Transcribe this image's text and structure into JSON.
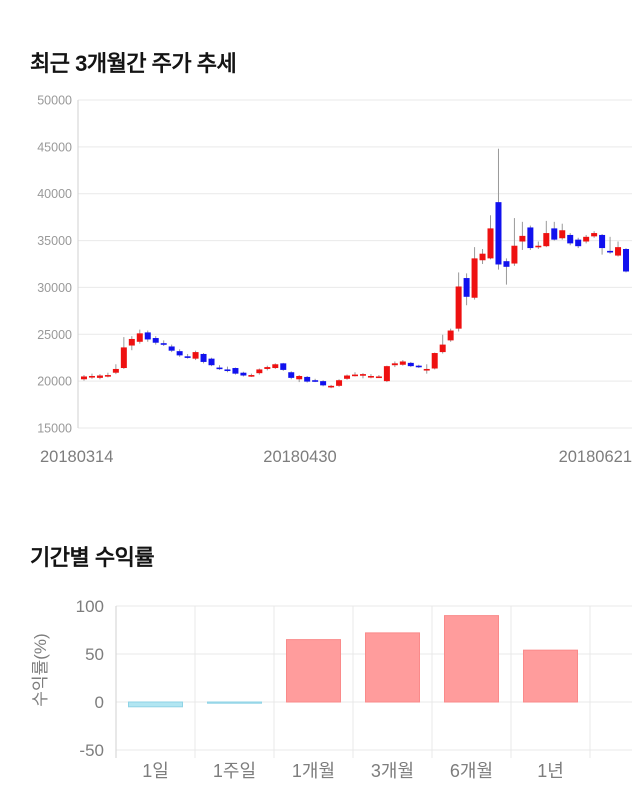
{
  "chart_data": [
    {
      "type": "candlestick",
      "title": "최근 3개월간 주가 추세",
      "xlabel": "",
      "ylabel": "",
      "x_tick_labels": [
        "20180314",
        "20180430",
        "20180621"
      ],
      "y_ticks": [
        50000,
        45000,
        40000,
        35000,
        30000,
        25000,
        20000,
        15000
      ],
      "ylim": [
        15000,
        50000
      ],
      "grid": true,
      "legend": false,
      "up_color": "#ee1111",
      "down_color": "#1111ee",
      "wick_color": "#999999",
      "candles_ohlc": [
        [
          20200,
          20650,
          20050,
          20500
        ],
        [
          20450,
          20800,
          20250,
          20550
        ],
        [
          20350,
          20750,
          20200,
          20600
        ],
        [
          20550,
          20900,
          20400,
          20650
        ],
        [
          20900,
          21800,
          20750,
          21300
        ],
        [
          21400,
          24700,
          21300,
          23600
        ],
        [
          23800,
          24800,
          23300,
          24500
        ],
        [
          24200,
          25500,
          24000,
          25100
        ],
        [
          25200,
          25400,
          24200,
          24450
        ],
        [
          24600,
          24800,
          23900,
          24100
        ],
        [
          24050,
          24350,
          23750,
          23950
        ],
        [
          23700,
          23900,
          23100,
          23250
        ],
        [
          23200,
          23400,
          22600,
          22750
        ],
        [
          22650,
          22900,
          22400,
          22550
        ],
        [
          22400,
          23250,
          22250,
          23100
        ],
        [
          22900,
          23000,
          21900,
          22050
        ],
        [
          22400,
          22500,
          21600,
          21700
        ],
        [
          21450,
          21700,
          21200,
          21350
        ],
        [
          21250,
          21550,
          20950,
          21150
        ],
        [
          21400,
          21450,
          20700,
          20800
        ],
        [
          20900,
          21000,
          20500,
          20600
        ],
        [
          20550,
          20800,
          20450,
          20650
        ],
        [
          20850,
          21350,
          20700,
          21250
        ],
        [
          21300,
          21650,
          21150,
          21500
        ],
        [
          21400,
          21900,
          21300,
          21800
        ],
        [
          21900,
          21950,
          21100,
          21200
        ],
        [
          20950,
          21050,
          20200,
          20350
        ],
        [
          20200,
          20650,
          19900,
          20550
        ],
        [
          20450,
          20550,
          19850,
          19950
        ],
        [
          20100,
          20250,
          19900,
          20050
        ],
        [
          20000,
          20100,
          19450,
          19550
        ],
        [
          19400,
          19600,
          19250,
          19500
        ],
        [
          19500,
          20200,
          19400,
          20100
        ],
        [
          20250,
          20700,
          20150,
          20600
        ],
        [
          20600,
          20950,
          20500,
          20700
        ],
        [
          20700,
          20850,
          20300,
          20750
        ],
        [
          20500,
          20750,
          20300,
          20550
        ],
        [
          20450,
          20650,
          20350,
          20500
        ],
        [
          20000,
          21650,
          19900,
          21600
        ],
        [
          21700,
          22100,
          21500,
          21900
        ],
        [
          21750,
          22250,
          21650,
          22100
        ],
        [
          21950,
          22050,
          21500,
          21600
        ],
        [
          21650,
          21750,
          21400,
          21500
        ],
        [
          21250,
          21800,
          20800,
          21300
        ],
        [
          21350,
          23050,
          21250,
          23000
        ],
        [
          23100,
          24950,
          22950,
          23900
        ],
        [
          24350,
          25600,
          24200,
          25400
        ],
        [
          25600,
          31600,
          25300,
          30100
        ],
        [
          31000,
          31500,
          28100,
          29000
        ],
        [
          28900,
          34300,
          28700,
          33100
        ],
        [
          32900,
          34100,
          32500,
          33600
        ],
        [
          33100,
          37700,
          33000,
          36300
        ],
        [
          39100,
          44800,
          31900,
          32450
        ],
        [
          32800,
          33100,
          30300,
          32200
        ],
        [
          32550,
          37400,
          32300,
          34450
        ],
        [
          34900,
          37000,
          34000,
          35500
        ],
        [
          36400,
          36600,
          34000,
          34200
        ],
        [
          34300,
          34900,
          34100,
          34450
        ],
        [
          34400,
          37100,
          34300,
          35800
        ],
        [
          36300,
          37000,
          35000,
          35100
        ],
        [
          35250,
          36800,
          35100,
          36100
        ],
        [
          35600,
          35800,
          34500,
          34700
        ],
        [
          35100,
          35300,
          34200,
          34400
        ],
        [
          34900,
          35600,
          34700,
          35400
        ],
        [
          35450,
          36000,
          35300,
          35800
        ],
        [
          35600,
          35700,
          33500,
          34200
        ],
        [
          33900,
          35400,
          33600,
          33800
        ],
        [
          33400,
          34900,
          33300,
          34300
        ],
        [
          34100,
          34200,
          31600,
          31700
        ]
      ]
    },
    {
      "type": "bar",
      "title": "기간별 수익률",
      "xlabel": "",
      "ylabel": "수익률(%)",
      "categories": [
        "1일",
        "1주일",
        "1개월",
        "3개월",
        "6개월",
        "1년"
      ],
      "values": [
        -5,
        -1,
        65,
        72,
        90,
        54
      ],
      "y_ticks": [
        100,
        50,
        0,
        -50
      ],
      "ylim": [
        -50,
        100
      ],
      "grid": true,
      "legend": false,
      "positive_color": "#ff9c9c",
      "positive_border": "#fa8a8a",
      "negative_color": "#b2e6f2",
      "negative_border": "#8fd3e5"
    }
  ],
  "colors": {
    "grid_line": "#e9e9e9",
    "axis_line": "#d2d2d2",
    "tick_label": "#999999",
    "x_label": "#7d7d7d",
    "title": "#141414"
  }
}
